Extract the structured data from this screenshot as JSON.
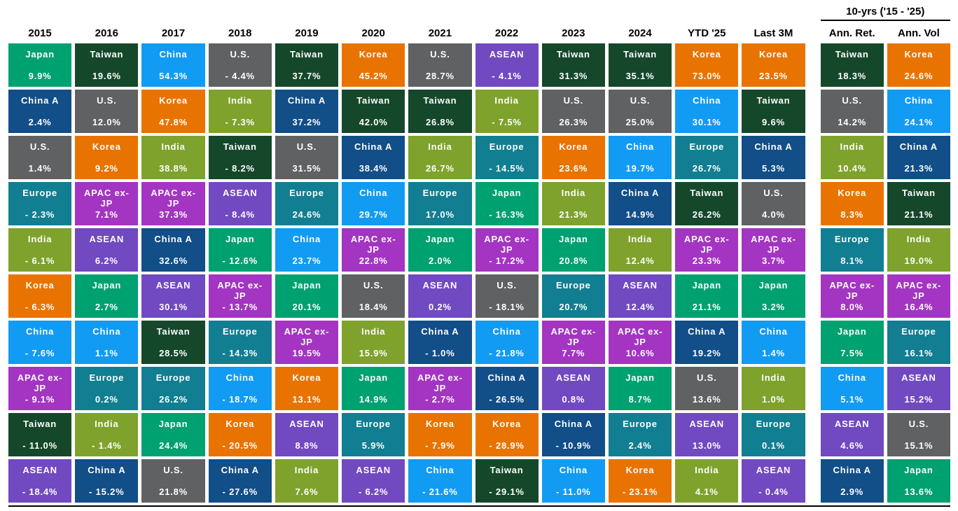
{
  "chart_data": {
    "type": "table",
    "title": "",
    "group_header": {
      "label": "10-yrs ('15 - '25)"
    },
    "text_color": "#FFFFFF",
    "header_text_color": "#000000",
    "region_colors": {
      "Japan": "#00A171",
      "Taiwan": "#15482B",
      "China": "#129BF3",
      "U.S.": "#5F6163",
      "Korea": "#E97300",
      "ASEAN": "#7149C1",
      "China A": "#124E88",
      "India": "#7FA22D",
      "Europe": "#127E91",
      "APAC ex-JP": "#A335C2"
    },
    "columns": [
      {
        "label": "2015",
        "group": "main",
        "cells": [
          {
            "name": "Japan",
            "value": "9.9%"
          },
          {
            "name": "China A",
            "value": "2.4%"
          },
          {
            "name": "U.S.",
            "value": "1.4%"
          },
          {
            "name": "Europe",
            "value": "- 2.3%"
          },
          {
            "name": "India",
            "value": "- 6.1%"
          },
          {
            "name": "Korea",
            "value": "- 6.3%"
          },
          {
            "name": "China",
            "value": "- 7.6%"
          },
          {
            "name": "APAC ex-JP",
            "value": "- 9.1%"
          },
          {
            "name": "Taiwan",
            "value": "- 11.0%"
          },
          {
            "name": "ASEAN",
            "value": "- 18.4%"
          }
        ]
      },
      {
        "label": "2016",
        "group": "main",
        "cells": [
          {
            "name": "Taiwan",
            "value": "19.6%"
          },
          {
            "name": "U.S.",
            "value": "12.0%"
          },
          {
            "name": "Korea",
            "value": "9.2%"
          },
          {
            "name": "APAC ex-JP",
            "value": "7.1%"
          },
          {
            "name": "ASEAN",
            "value": "6.2%"
          },
          {
            "name": "Japan",
            "value": "2.7%"
          },
          {
            "name": "China",
            "value": "1.1%"
          },
          {
            "name": "Europe",
            "value": "0.2%"
          },
          {
            "name": "India",
            "value": "- 1.4%"
          },
          {
            "name": "China A",
            "value": "- 15.2%"
          }
        ]
      },
      {
        "label": "2017",
        "group": "main",
        "cells": [
          {
            "name": "China",
            "value": "54.3%"
          },
          {
            "name": "Korea",
            "value": "47.8%"
          },
          {
            "name": "India",
            "value": "38.8%"
          },
          {
            "name": "APAC ex-JP",
            "value": "37.3%"
          },
          {
            "name": "China A",
            "value": "32.6%"
          },
          {
            "name": "ASEAN",
            "value": "30.1%"
          },
          {
            "name": "Taiwan",
            "value": "28.5%"
          },
          {
            "name": "Europe",
            "value": "26.2%"
          },
          {
            "name": "Japan",
            "value": "24.4%"
          },
          {
            "name": "U.S.",
            "value": "21.8%"
          }
        ]
      },
      {
        "label": "2018",
        "group": "main",
        "cells": [
          {
            "name": "U.S.",
            "value": "- 4.4%"
          },
          {
            "name": "India",
            "value": "- 7.3%"
          },
          {
            "name": "Taiwan",
            "value": "- 8.2%"
          },
          {
            "name": "ASEAN",
            "value": "- 8.4%"
          },
          {
            "name": "Japan",
            "value": "- 12.6%"
          },
          {
            "name": "APAC ex-JP",
            "value": "- 13.7%"
          },
          {
            "name": "Europe",
            "value": "- 14.3%"
          },
          {
            "name": "China",
            "value": "- 18.7%"
          },
          {
            "name": "Korea",
            "value": "- 20.5%"
          },
          {
            "name": "China A",
            "value": "- 27.6%"
          }
        ]
      },
      {
        "label": "2019",
        "group": "main",
        "cells": [
          {
            "name": "Taiwan",
            "value": "37.7%"
          },
          {
            "name": "China A",
            "value": "37.2%"
          },
          {
            "name": "U.S.",
            "value": "31.5%"
          },
          {
            "name": "Europe",
            "value": "24.6%"
          },
          {
            "name": "China",
            "value": "23.7%"
          },
          {
            "name": "Japan",
            "value": "20.1%"
          },
          {
            "name": "APAC ex-JP",
            "value": "19.5%"
          },
          {
            "name": "Korea",
            "value": "13.1%"
          },
          {
            "name": "ASEAN",
            "value": "8.8%"
          },
          {
            "name": "India",
            "value": "7.6%"
          }
        ]
      },
      {
        "label": "2020",
        "group": "main",
        "cells": [
          {
            "name": "Korea",
            "value": "45.2%"
          },
          {
            "name": "Taiwan",
            "value": "42.0%"
          },
          {
            "name": "China A",
            "value": "38.4%"
          },
          {
            "name": "China",
            "value": "29.7%"
          },
          {
            "name": "APAC ex-JP",
            "value": "22.8%"
          },
          {
            "name": "U.S.",
            "value": "18.4%"
          },
          {
            "name": "India",
            "value": "15.9%"
          },
          {
            "name": "Japan",
            "value": "14.9%"
          },
          {
            "name": "Europe",
            "value": "5.9%"
          },
          {
            "name": "ASEAN",
            "value": "- 6.2%"
          }
        ]
      },
      {
        "label": "2021",
        "group": "main",
        "cells": [
          {
            "name": "U.S.",
            "value": "28.7%"
          },
          {
            "name": "Taiwan",
            "value": "26.8%"
          },
          {
            "name": "India",
            "value": "26.7%"
          },
          {
            "name": "Europe",
            "value": "17.0%"
          },
          {
            "name": "Japan",
            "value": "2.0%"
          },
          {
            "name": "ASEAN",
            "value": "0.2%"
          },
          {
            "name": "China A",
            "value": "- 1.0%"
          },
          {
            "name": "APAC ex-JP",
            "value": "- 2.7%"
          },
          {
            "name": "Korea",
            "value": "- 7.9%"
          },
          {
            "name": "China",
            "value": "- 21.6%"
          }
        ]
      },
      {
        "label": "2022",
        "group": "main",
        "cells": [
          {
            "name": "ASEAN",
            "value": "- 4.1%"
          },
          {
            "name": "India",
            "value": "- 7.5%"
          },
          {
            "name": "Europe",
            "value": "- 14.5%"
          },
          {
            "name": "Japan",
            "value": "- 16.3%"
          },
          {
            "name": "APAC ex-JP",
            "value": "- 17.2%"
          },
          {
            "name": "U.S.",
            "value": "- 18.1%"
          },
          {
            "name": "China",
            "value": "- 21.8%"
          },
          {
            "name": "China A",
            "value": "- 26.5%"
          },
          {
            "name": "Korea",
            "value": "- 28.9%"
          },
          {
            "name": "Taiwan",
            "value": "- 29.1%"
          }
        ]
      },
      {
        "label": "2023",
        "group": "main",
        "cells": [
          {
            "name": "Taiwan",
            "value": "31.3%"
          },
          {
            "name": "U.S.",
            "value": "26.3%"
          },
          {
            "name": "Korea",
            "value": "23.6%"
          },
          {
            "name": "India",
            "value": "21.3%"
          },
          {
            "name": "Japan",
            "value": "20.8%"
          },
          {
            "name": "Europe",
            "value": "20.7%"
          },
          {
            "name": "APAC ex-JP",
            "value": "7.7%"
          },
          {
            "name": "ASEAN",
            "value": "0.8%"
          },
          {
            "name": "China A",
            "value": "- 10.9%"
          },
          {
            "name": "China",
            "value": "- 11.0%"
          }
        ]
      },
      {
        "label": "2024",
        "group": "main",
        "cells": [
          {
            "name": "Taiwan",
            "value": "35.1%"
          },
          {
            "name": "U.S.",
            "value": "25.0%"
          },
          {
            "name": "China",
            "value": "19.7%"
          },
          {
            "name": "China A",
            "value": "14.9%"
          },
          {
            "name": "India",
            "value": "12.4%"
          },
          {
            "name": "ASEAN",
            "value": "12.4%"
          },
          {
            "name": "APAC ex-JP",
            "value": "10.6%"
          },
          {
            "name": "Japan",
            "value": "8.7%"
          },
          {
            "name": "Europe",
            "value": "2.4%"
          },
          {
            "name": "Korea",
            "value": "- 23.1%"
          }
        ]
      },
      {
        "label": "YTD '25",
        "group": "main",
        "cells": [
          {
            "name": "Korea",
            "value": "73.0%"
          },
          {
            "name": "China",
            "value": "30.1%"
          },
          {
            "name": "Europe",
            "value": "26.7%"
          },
          {
            "name": "Taiwan",
            "value": "26.2%"
          },
          {
            "name": "APAC ex-JP",
            "value": "23.3%"
          },
          {
            "name": "Japan",
            "value": "21.1%"
          },
          {
            "name": "China A",
            "value": "19.2%"
          },
          {
            "name": "U.S.",
            "value": "13.6%"
          },
          {
            "name": "ASEAN",
            "value": "13.0%"
          },
          {
            "name": "India",
            "value": "4.1%"
          }
        ]
      },
      {
        "label": "Last 3M",
        "group": "main",
        "cells": [
          {
            "name": "Korea",
            "value": "23.5%"
          },
          {
            "name": "Taiwan",
            "value": "9.6%"
          },
          {
            "name": "China A",
            "value": "5.3%"
          },
          {
            "name": "U.S.",
            "value": "4.0%"
          },
          {
            "name": "APAC ex-JP",
            "value": "3.7%"
          },
          {
            "name": "Japan",
            "value": "3.2%"
          },
          {
            "name": "China",
            "value": "1.4%"
          },
          {
            "name": "India",
            "value": "1.0%"
          },
          {
            "name": "Europe",
            "value": "0.1%"
          },
          {
            "name": "ASEAN",
            "value": "- 0.4%"
          }
        ]
      },
      {
        "label": "Ann. Ret.",
        "group": "10yr",
        "cells": [
          {
            "name": "Taiwan",
            "value": "18.3%"
          },
          {
            "name": "U.S.",
            "value": "14.2%"
          },
          {
            "name": "India",
            "value": "10.4%"
          },
          {
            "name": "Korea",
            "value": "8.3%"
          },
          {
            "name": "Europe",
            "value": "8.1%"
          },
          {
            "name": "APAC ex-JP",
            "value": "8.0%"
          },
          {
            "name": "Japan",
            "value": "7.5%"
          },
          {
            "name": "China",
            "value": "5.1%"
          },
          {
            "name": "ASEAN",
            "value": "4.6%"
          },
          {
            "name": "China A",
            "value": "2.9%"
          }
        ]
      },
      {
        "label": "Ann. Vol",
        "group": "10yr",
        "cells": [
          {
            "name": "Korea",
            "value": "24.6%"
          },
          {
            "name": "China",
            "value": "24.1%"
          },
          {
            "name": "China A",
            "value": "21.3%"
          },
          {
            "name": "Taiwan",
            "value": "21.1%"
          },
          {
            "name": "India",
            "value": "19.0%"
          },
          {
            "name": "APAC ex-JP",
            "value": "16.4%"
          },
          {
            "name": "Europe",
            "value": "16.1%"
          },
          {
            "name": "ASEAN",
            "value": "15.2%"
          },
          {
            "name": "U.S.",
            "value": "15.1%"
          },
          {
            "name": "Japan",
            "value": "13.6%"
          }
        ]
      }
    ]
  }
}
